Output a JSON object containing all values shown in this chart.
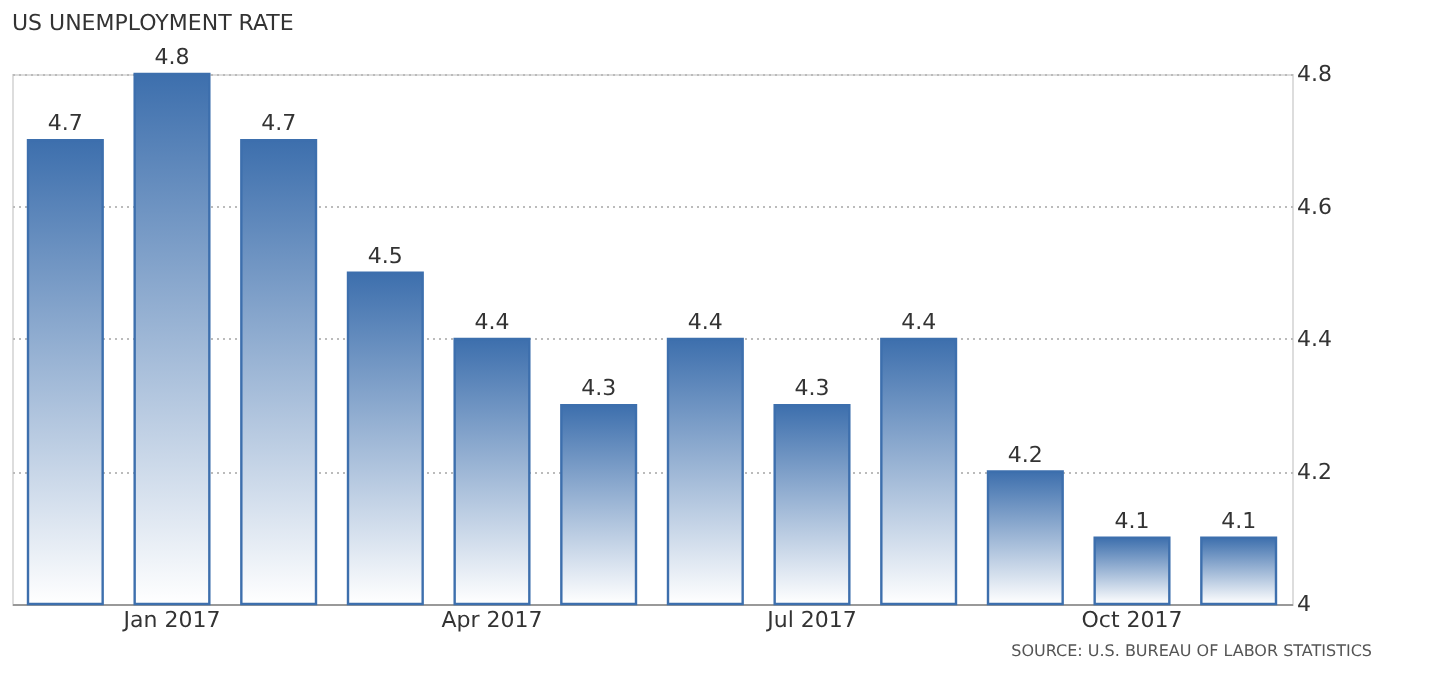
{
  "chart_data": {
    "type": "bar",
    "title": "US UNEMPLOYMENT RATE",
    "categories": [
      null,
      "Jan 2017",
      null,
      null,
      "Apr 2017",
      null,
      null,
      "Jul 2017",
      null,
      null,
      "Oct 2017",
      null
    ],
    "values": [
      4.7,
      4.8,
      4.7,
      4.5,
      4.4,
      4.3,
      4.4,
      4.3,
      4.4,
      4.2,
      4.1,
      4.1
    ],
    "color": "#3d6fad",
    "ylim": [
      4,
      4.8
    ],
    "yticks": [
      4,
      4.2,
      4.4,
      4.6,
      4.8
    ],
    "grid": "y",
    "data_labels": true,
    "annotations": [
      "SOURCE: U.S. BUREAU OF LABOR STATISTICS"
    ]
  }
}
